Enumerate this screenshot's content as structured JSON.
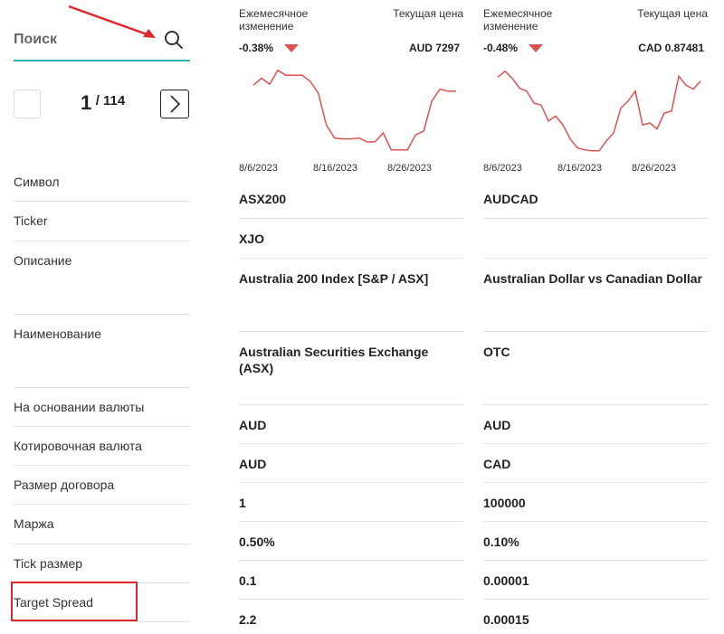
{
  "search": {
    "label": "Поиск",
    "icon": "search-icon"
  },
  "pager": {
    "current": "1",
    "total": "/ 114"
  },
  "rows": [
    "Символ",
    "Ticker",
    "Описание",
    "Наименование",
    "На основании валюты",
    "Котировочная валюта",
    "Размер договора",
    "Маржа",
    "Tick размер",
    "Target Spread"
  ],
  "instruments": [
    {
      "monthly_label": "Ежемесячное изменение",
      "price_label": "Текущая цена",
      "monthly_change": "-0.38%",
      "price": "AUD 7297",
      "chart_data": {
        "type": "line",
        "x_ticks": [
          "8/6/2023",
          "8/16/2023",
          "8/26/2023"
        ],
        "color": "#e05252",
        "values": [
          0.78,
          0.85,
          0.79,
          0.93,
          0.88,
          0.88,
          0.88,
          0.82,
          0.7,
          0.38,
          0.25,
          0.24,
          0.24,
          0.25,
          0.21,
          0.21,
          0.3,
          0.13,
          0.13,
          0.13,
          0.28,
          0.32,
          0.62,
          0.74,
          0.72,
          0.72
        ]
      },
      "values": [
        "ASX200",
        "XJO",
        "Australia 200 Index [S&P / ASX]",
        "Australian Securities Exchange (ASX)",
        "AUD",
        "AUD",
        "1",
        "0.50%",
        "0.1",
        "2.2"
      ]
    },
    {
      "monthly_label": "Ежемесячное изменение",
      "price_label": "Текущая цена",
      "monthly_change": "-0.48%",
      "price": "CAD 0.87481",
      "chart_data": {
        "type": "line",
        "x_ticks": [
          "8/6/2023",
          "8/16/2023",
          "8/26/2023"
        ],
        "color": "#e05252",
        "values": [
          0.86,
          0.92,
          0.85,
          0.75,
          0.72,
          0.6,
          0.58,
          0.42,
          0.47,
          0.38,
          0.24,
          0.15,
          0.13,
          0.12,
          0.12,
          0.22,
          0.3,
          0.55,
          0.62,
          0.72,
          0.38,
          0.4,
          0.34,
          0.5,
          0.52,
          0.87,
          0.78,
          0.74,
          0.82
        ]
      },
      "values": [
        "AUDCAD",
        "",
        "Australian Dollar vs Canadian Dollar",
        "OTC",
        "AUD",
        "CAD",
        "100000",
        "0.10%",
        "0.00001",
        "0.00015"
      ]
    }
  ]
}
